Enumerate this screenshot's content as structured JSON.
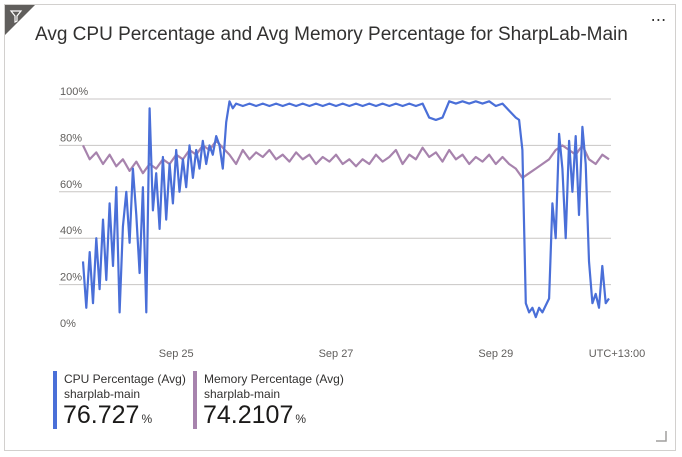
{
  "tile": {
    "title": "Avg CPU Percentage and Avg Memory Percentage for SharpLab-Main",
    "menu_glyph": "⋯",
    "filter_icon": "filter-icon",
    "more_icon": "more-options-icon",
    "resize_icon": "resize-grip-icon"
  },
  "chart_data": {
    "type": "line",
    "title": "Avg CPU Percentage and Avg Memory Percentage for SharpLab-Main",
    "xlabel": "",
    "ylabel": "",
    "ylim": [
      0,
      100
    ],
    "xlim": [
      0,
      72
    ],
    "x_unit": "hours from start",
    "grid": true,
    "y_ticks": [
      "0%",
      "20%",
      "40%",
      "60%",
      "80%",
      "100%"
    ],
    "y_tick_values": [
      0,
      20,
      40,
      60,
      80,
      100
    ],
    "x_ticks": [
      {
        "label": "Sep 25",
        "x": 14
      },
      {
        "label": "Sep 27",
        "x": 38
      },
      {
        "label": "Sep 29",
        "x": 62
      }
    ],
    "timezone_label": "UTC+13:00",
    "legend_position": "bottom",
    "series": [
      {
        "name": "CPU Percentage (Avg)",
        "resource": "sharplab-main",
        "color": "#4a6fd8",
        "summary": "76.727",
        "unit": "%",
        "points": [
          [
            0,
            30
          ],
          [
            0.5,
            10
          ],
          [
            1,
            34
          ],
          [
            1.5,
            12
          ],
          [
            2,
            40
          ],
          [
            2.5,
            18
          ],
          [
            3,
            48
          ],
          [
            3.5,
            22
          ],
          [
            4,
            55
          ],
          [
            4.5,
            28
          ],
          [
            5,
            62
          ],
          [
            5.5,
            8
          ],
          [
            6,
            45
          ],
          [
            6.5,
            60
          ],
          [
            7,
            38
          ],
          [
            7.5,
            70
          ],
          [
            8,
            50
          ],
          [
            8.5,
            25
          ],
          [
            9,
            62
          ],
          [
            9.5,
            8
          ],
          [
            10,
            96
          ],
          [
            10.5,
            52
          ],
          [
            11,
            68
          ],
          [
            11.5,
            44
          ],
          [
            12,
            75
          ],
          [
            12.5,
            48
          ],
          [
            13,
            72
          ],
          [
            13.5,
            55
          ],
          [
            14,
            78
          ],
          [
            14.5,
            60
          ],
          [
            15,
            74
          ],
          [
            15.5,
            62
          ],
          [
            16,
            80
          ],
          [
            16.5,
            66
          ],
          [
            17,
            78
          ],
          [
            17.5,
            70
          ],
          [
            18,
            82
          ],
          [
            18.5,
            72
          ],
          [
            19,
            80
          ],
          [
            19.5,
            76
          ],
          [
            20,
            84
          ],
          [
            20.5,
            80
          ],
          [
            21,
            70
          ],
          [
            21.5,
            90
          ],
          [
            22,
            99
          ],
          [
            22.5,
            96
          ],
          [
            23,
            98
          ],
          [
            24,
            97
          ],
          [
            25,
            98
          ],
          [
            26,
            97
          ],
          [
            27,
            98
          ],
          [
            28,
            97
          ],
          [
            29,
            98
          ],
          [
            30,
            97
          ],
          [
            31,
            98
          ],
          [
            32,
            97
          ],
          [
            33,
            98
          ],
          [
            34,
            97
          ],
          [
            35,
            98
          ],
          [
            36,
            97
          ],
          [
            37,
            98
          ],
          [
            38,
            97
          ],
          [
            39,
            98
          ],
          [
            40,
            97
          ],
          [
            41,
            98
          ],
          [
            42,
            97
          ],
          [
            43,
            98
          ],
          [
            44,
            97
          ],
          [
            45,
            98
          ],
          [
            46,
            97
          ],
          [
            47,
            98
          ],
          [
            48,
            97
          ],
          [
            49,
            98
          ],
          [
            50,
            97
          ],
          [
            51,
            98
          ],
          [
            52,
            92
          ],
          [
            53,
            91
          ],
          [
            54,
            92
          ],
          [
            55,
            99
          ],
          [
            56,
            98
          ],
          [
            57,
            99
          ],
          [
            58,
            98
          ],
          [
            59,
            99
          ],
          [
            60,
            98
          ],
          [
            61,
            99
          ],
          [
            62,
            97
          ],
          [
            63,
            98
          ],
          [
            64,
            95
          ],
          [
            65,
            92
          ],
          [
            65.5,
            91
          ],
          [
            66,
            78
          ],
          [
            66.5,
            12
          ],
          [
            67,
            8
          ],
          [
            67.5,
            10
          ],
          [
            68,
            6
          ],
          [
            68.5,
            10
          ],
          [
            69,
            8
          ],
          [
            69.5,
            11
          ],
          [
            70,
            14
          ],
          [
            70.5,
            55
          ],
          [
            71,
            40
          ],
          [
            71.5,
            85
          ],
          [
            72,
            70
          ],
          [
            72.5,
            40
          ],
          [
            73,
            82
          ],
          [
            73.5,
            60
          ],
          [
            74,
            84
          ],
          [
            74.5,
            50
          ],
          [
            75,
            88
          ],
          [
            75.5,
            72
          ],
          [
            76,
            30
          ],
          [
            76.5,
            12
          ],
          [
            77,
            16
          ],
          [
            77.5,
            10
          ],
          [
            78,
            28
          ],
          [
            78.5,
            12
          ],
          [
            79,
            14
          ]
        ]
      },
      {
        "name": "Memory Percentage (Avg)",
        "resource": "sharplab-main",
        "color": "#a783ad",
        "summary": "74.2107",
        "unit": "%",
        "points": [
          [
            0,
            80
          ],
          [
            1,
            74
          ],
          [
            2,
            77
          ],
          [
            3,
            72
          ],
          [
            4,
            76
          ],
          [
            5,
            71
          ],
          [
            6,
            74
          ],
          [
            7,
            69
          ],
          [
            8,
            73
          ],
          [
            9,
            68
          ],
          [
            10,
            72
          ],
          [
            11,
            70
          ],
          [
            12,
            74
          ],
          [
            13,
            72
          ],
          [
            14,
            76
          ],
          [
            15,
            74
          ],
          [
            16,
            78
          ],
          [
            17,
            76
          ],
          [
            18,
            80
          ],
          [
            19,
            78
          ],
          [
            20,
            82
          ],
          [
            21,
            79
          ],
          [
            22,
            76
          ],
          [
            23,
            72
          ],
          [
            24,
            78
          ],
          [
            25,
            74
          ],
          [
            26,
            77
          ],
          [
            27,
            75
          ],
          [
            28,
            78
          ],
          [
            29,
            74
          ],
          [
            30,
            76
          ],
          [
            31,
            73
          ],
          [
            32,
            77
          ],
          [
            33,
            74
          ],
          [
            34,
            76
          ],
          [
            35,
            72
          ],
          [
            36,
            75
          ],
          [
            37,
            73
          ],
          [
            38,
            76
          ],
          [
            39,
            72
          ],
          [
            40,
            74
          ],
          [
            41,
            71
          ],
          [
            42,
            74
          ],
          [
            43,
            72
          ],
          [
            44,
            76
          ],
          [
            45,
            73
          ],
          [
            46,
            75
          ],
          [
            47,
            78
          ],
          [
            48,
            72
          ],
          [
            49,
            76
          ],
          [
            50,
            74
          ],
          [
            51,
            79
          ],
          [
            52,
            75
          ],
          [
            53,
            77
          ],
          [
            54,
            73
          ],
          [
            55,
            78
          ],
          [
            56,
            74
          ],
          [
            57,
            76
          ],
          [
            58,
            72
          ],
          [
            59,
            75
          ],
          [
            60,
            73
          ],
          [
            61,
            76
          ],
          [
            62,
            72
          ],
          [
            63,
            75
          ],
          [
            64,
            72
          ],
          [
            65,
            70
          ],
          [
            66,
            66
          ],
          [
            67,
            68
          ],
          [
            68,
            70
          ],
          [
            69,
            72
          ],
          [
            70,
            74
          ],
          [
            71,
            78
          ],
          [
            72,
            80
          ],
          [
            73,
            78
          ],
          [
            74,
            76
          ],
          [
            75,
            80
          ],
          [
            76,
            74
          ],
          [
            77,
            72
          ],
          [
            78,
            76
          ],
          [
            79,
            74
          ]
        ]
      }
    ]
  }
}
